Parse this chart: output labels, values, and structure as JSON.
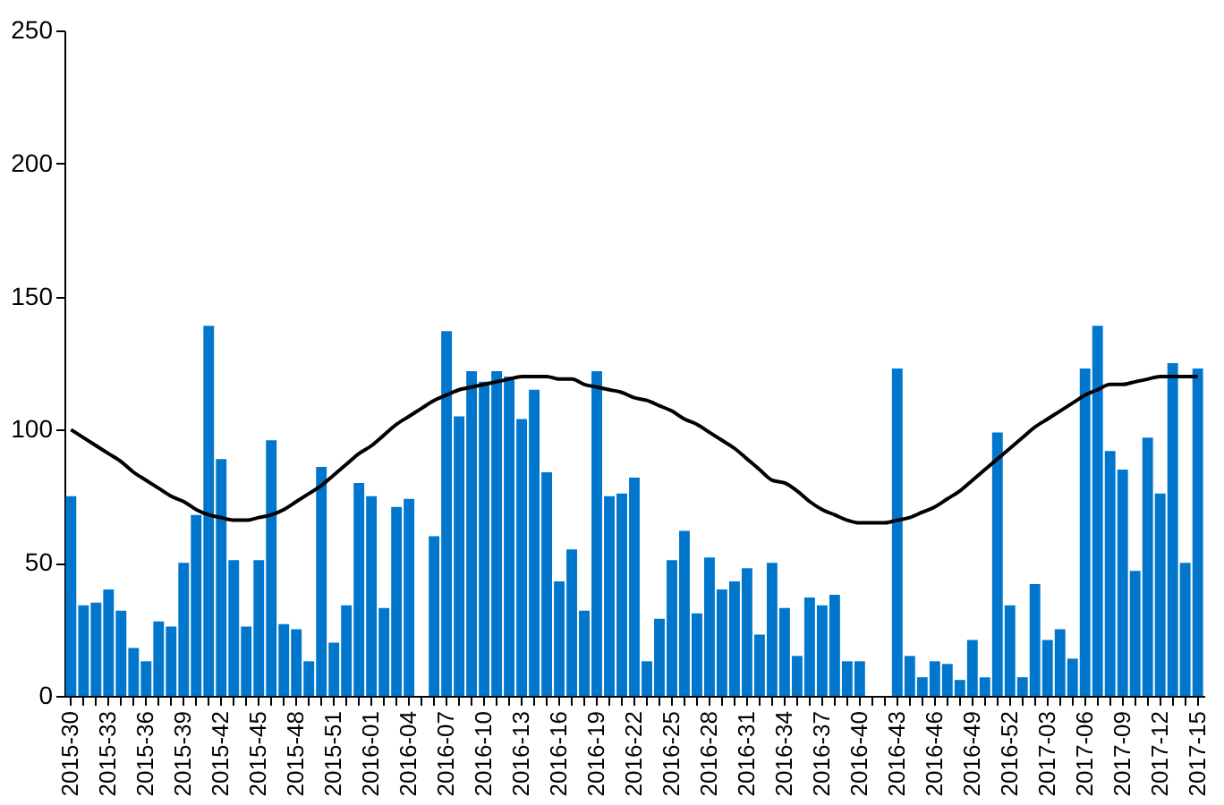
{
  "chart_data": {
    "type": "bar",
    "categories": [
      "2015-30",
      null,
      null,
      "2015-33",
      null,
      null,
      "2015-36",
      null,
      null,
      "2015-39",
      null,
      null,
      "2015-42",
      null,
      null,
      "2015-45",
      null,
      null,
      "2015-48",
      null,
      null,
      "2015-51",
      null,
      null,
      "2016-01",
      null,
      null,
      "2016-04",
      null,
      null,
      "2016-07",
      null,
      null,
      "2016-10",
      null,
      null,
      "2016-13",
      null,
      null,
      "2016-16",
      null,
      null,
      "2016-19",
      null,
      null,
      "2016-22",
      null,
      null,
      "2016-25",
      null,
      null,
      "2016-28",
      null,
      null,
      "2016-31",
      null,
      null,
      "2016-34",
      null,
      null,
      "2016-37",
      null,
      null,
      "2016-40",
      null,
      null,
      "2016-43",
      null,
      null,
      "2016-46",
      null,
      null,
      "2016-49",
      null,
      null,
      "2016-52",
      null,
      null,
      "2017-03",
      null,
      null,
      "2017-06",
      null,
      null,
      "2017-09",
      null,
      null,
      "2017-12",
      null,
      null,
      "2017-15"
    ],
    "series": [
      {
        "color": "#0077cc",
        "values": [
          75,
          34,
          35,
          40,
          32,
          18,
          13,
          28,
          26,
          50,
          68,
          139,
          89,
          51,
          26,
          51,
          96,
          27,
          25,
          13,
          86,
          20,
          34,
          80,
          75,
          33,
          71,
          74,
          null,
          60,
          137,
          105,
          122,
          118,
          122,
          120,
          104,
          115,
          84,
          43,
          55,
          32,
          122,
          75,
          76,
          82,
          13,
          29,
          51,
          62,
          31,
          52,
          40,
          43,
          48,
          23,
          50,
          33,
          15,
          37,
          34,
          38,
          13,
          13,
          null,
          null,
          123,
          15,
          7,
          13,
          12,
          6,
          21,
          7,
          99,
          34,
          7,
          42,
          21,
          25,
          14,
          123,
          139,
          92,
          85,
          47,
          97,
          76,
          125,
          50,
          123
        ]
      },
      {
        "type": "line",
        "color": "#000000",
        "values": [
          100,
          97,
          94,
          91,
          88,
          84,
          81,
          78,
          75,
          73,
          70,
          68,
          67,
          66,
          66,
          67,
          68,
          70,
          73,
          76,
          79,
          83,
          87,
          91,
          94,
          98,
          102,
          105,
          108,
          111,
          113,
          115,
          116,
          117,
          118,
          119,
          120,
          120,
          120,
          119,
          119,
          117,
          116,
          115,
          114,
          112,
          111,
          109,
          107,
          104,
          102,
          99,
          96,
          93,
          89,
          85,
          81,
          80,
          77,
          73,
          70,
          68,
          66,
          65,
          65,
          65,
          66,
          67,
          69,
          71,
          74,
          77,
          81,
          85,
          89,
          93,
          97,
          101,
          104,
          107,
          110,
          113,
          115,
          117,
          117,
          118,
          119,
          120,
          120,
          120,
          120
        ]
      }
    ],
    "ylim": [
      0,
      250
    ],
    "yticks": [
      0,
      50,
      100,
      150,
      200,
      250
    ],
    "grid": false
  }
}
